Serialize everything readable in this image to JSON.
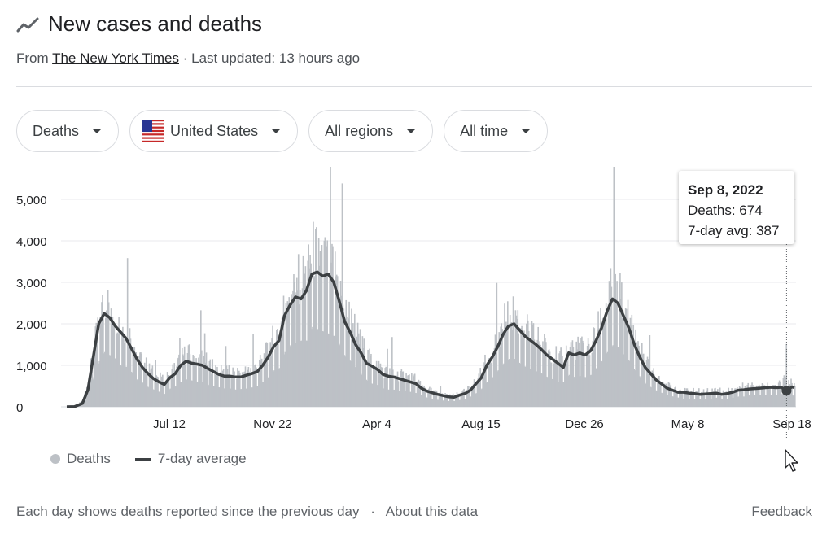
{
  "header": {
    "title": "New cases and deaths",
    "source_prefix": "From",
    "source_name": "The New York Times",
    "updated": "· Last updated: 13 hours ago"
  },
  "filters": [
    {
      "label": "Deaths"
    },
    {
      "label": "United States",
      "flag": "us-flag-icon"
    },
    {
      "label": "All regions"
    },
    {
      "label": "All time"
    }
  ],
  "tooltip": {
    "date": "Sep 8, 2022",
    "deaths_label": "Deaths: 674",
    "avg_label": "7-day avg: 387"
  },
  "legend": {
    "bars": "Deaths",
    "line": "7-day average"
  },
  "footer": {
    "note": "Each day shows deaths reported since the previous day",
    "separator": "·",
    "about": "About this data",
    "feedback": "Feedback"
  },
  "colors": {
    "bars": "#bdc1c6",
    "line": "#3c4043",
    "grid": "#e8eaed",
    "text": "#202124"
  },
  "chart_data": {
    "type": "bar",
    "y_ticks": [
      "5,000",
      "4,000",
      "3,000",
      "2,000",
      "1,000",
      "0"
    ],
    "x_ticks": [
      "Jul 12",
      "Nov 22",
      "Apr 4",
      "Aug 15",
      "Dec 26",
      "May 8",
      "Sep 18"
    ],
    "ylim": [
      0,
      5500
    ],
    "grid": "horizontal",
    "series": [
      {
        "name": "Deaths",
        "kind": "bars"
      },
      {
        "name": "7-day average",
        "kind": "line"
      }
    ],
    "points": [
      [
        "2020-02-29",
        0,
        0
      ],
      [
        "2020-03-10",
        0,
        5
      ],
      [
        "2020-03-20",
        150,
        80
      ],
      [
        "2020-03-27",
        600,
        400
      ],
      [
        "2020-04-03",
        1300,
        1200
      ],
      [
        "2020-04-10",
        2000,
        2000
      ],
      [
        "2020-04-17",
        2400,
        2250
      ],
      [
        "2020-04-24",
        2250,
        2150
      ],
      [
        "2020-05-01",
        2100,
        1950
      ],
      [
        "2020-05-08",
        1800,
        1800
      ],
      [
        "2020-05-15",
        1750,
        1650
      ],
      [
        "2020-05-22",
        1500,
        1400
      ],
      [
        "2020-05-29",
        1150,
        1150
      ],
      [
        "2020-06-05",
        1050,
        950
      ],
      [
        "2020-06-12",
        850,
        800
      ],
      [
        "2020-06-19",
        750,
        680
      ],
      [
        "2020-06-26",
        650,
        600
      ],
      [
        "2020-07-03",
        560,
        540
      ],
      [
        "2020-07-10",
        800,
        700
      ],
      [
        "2020-07-17",
        900,
        800
      ],
      [
        "2020-07-24",
        1100,
        1000
      ],
      [
        "2020-07-31",
        1200,
        1100
      ],
      [
        "2020-08-07",
        1150,
        1050
      ],
      [
        "2020-08-14",
        1100,
        1030
      ],
      [
        "2020-08-21",
        1100,
        1000
      ],
      [
        "2020-08-28",
        950,
        920
      ],
      [
        "2020-09-04",
        900,
        850
      ],
      [
        "2020-09-11",
        850,
        780
      ],
      [
        "2020-09-18",
        800,
        740
      ],
      [
        "2020-09-25",
        800,
        740
      ],
      [
        "2020-10-02",
        750,
        720
      ],
      [
        "2020-10-09",
        780,
        720
      ],
      [
        "2020-10-16",
        800,
        760
      ],
      [
        "2020-10-23",
        850,
        800
      ],
      [
        "2020-10-30",
        900,
        850
      ],
      [
        "2020-11-06",
        1100,
        1000
      ],
      [
        "2020-11-13",
        1300,
        1200
      ],
      [
        "2020-11-20",
        1600,
        1450
      ],
      [
        "2020-11-27",
        1700,
        1600
      ],
      [
        "2020-12-04",
        2400,
        2200
      ],
      [
        "2020-12-11",
        2700,
        2450
      ],
      [
        "2020-12-18",
        2800,
        2650
      ],
      [
        "2020-12-25",
        2900,
        2600
      ],
      [
        "2021-01-01",
        2900,
        2800
      ],
      [
        "2021-01-08",
        3500,
        3200
      ],
      [
        "2021-01-15",
        3400,
        3250
      ],
      [
        "2021-01-22",
        3300,
        3150
      ],
      [
        "2021-01-29",
        3200,
        3200
      ],
      [
        "2021-02-05",
        3100,
        3000
      ],
      [
        "2021-02-12",
        2700,
        2550
      ],
      [
        "2021-02-19",
        2200,
        2050
      ],
      [
        "2021-02-26",
        2000,
        1800
      ],
      [
        "2021-03-05",
        1700,
        1500
      ],
      [
        "2021-03-12",
        1400,
        1300
      ],
      [
        "2021-03-19",
        1150,
        1050
      ],
      [
        "2021-03-26",
        1000,
        980
      ],
      [
        "2021-04-02",
        950,
        900
      ],
      [
        "2021-04-09",
        800,
        780
      ],
      [
        "2021-04-16",
        750,
        740
      ],
      [
        "2021-04-23",
        750,
        720
      ],
      [
        "2021-04-30",
        700,
        680
      ],
      [
        "2021-05-07",
        700,
        640
      ],
      [
        "2021-05-14",
        650,
        600
      ],
      [
        "2021-05-21",
        600,
        560
      ],
      [
        "2021-05-28",
        500,
        450
      ],
      [
        "2021-06-04",
        400,
        380
      ],
      [
        "2021-06-11",
        350,
        340
      ],
      [
        "2021-06-18",
        300,
        300
      ],
      [
        "2021-06-25",
        270,
        270
      ],
      [
        "2021-07-02",
        250,
        240
      ],
      [
        "2021-07-09",
        250,
        230
      ],
      [
        "2021-07-16",
        300,
        280
      ],
      [
        "2021-07-23",
        350,
        320
      ],
      [
        "2021-07-30",
        450,
        400
      ],
      [
        "2021-08-06",
        600,
        550
      ],
      [
        "2021-08-13",
        800,
        700
      ],
      [
        "2021-08-20",
        1100,
        1000
      ],
      [
        "2021-08-27",
        1300,
        1200
      ],
      [
        "2021-09-03",
        1600,
        1450
      ],
      [
        "2021-09-10",
        1900,
        1750
      ],
      [
        "2021-09-17",
        2100,
        1950
      ],
      [
        "2021-09-24",
        2100,
        2000
      ],
      [
        "2021-10-01",
        1900,
        1850
      ],
      [
        "2021-10-08",
        1750,
        1700
      ],
      [
        "2021-10-15",
        1650,
        1600
      ],
      [
        "2021-10-22",
        1550,
        1500
      ],
      [
        "2021-10-29",
        1450,
        1380
      ],
      [
        "2021-11-05",
        1300,
        1250
      ],
      [
        "2021-11-12",
        1200,
        1150
      ],
      [
        "2021-11-19",
        1100,
        1050
      ],
      [
        "2021-11-26",
        1100,
        950
      ],
      [
        "2021-12-03",
        1400,
        1300
      ],
      [
        "2021-12-10",
        1300,
        1250
      ],
      [
        "2021-12-17",
        1350,
        1300
      ],
      [
        "2021-12-24",
        1300,
        1250
      ],
      [
        "2021-12-31",
        1400,
        1350
      ],
      [
        "2022-01-07",
        1700,
        1600
      ],
      [
        "2022-01-14",
        2000,
        1900
      ],
      [
        "2022-01-21",
        2400,
        2300
      ],
      [
        "2022-01-28",
        2700,
        2600
      ],
      [
        "2022-02-04",
        2600,
        2500
      ],
      [
        "2022-02-11",
        2300,
        2200
      ],
      [
        "2022-02-18",
        2000,
        1900
      ],
      [
        "2022-02-25",
        1600,
        1500
      ],
      [
        "2022-03-04",
        1300,
        1200
      ],
      [
        "2022-03-11",
        1000,
        950
      ],
      [
        "2022-03-18",
        850,
        800
      ],
      [
        "2022-03-25",
        700,
        650
      ],
      [
        "2022-04-01",
        600,
        550
      ],
      [
        "2022-04-08",
        500,
        450
      ],
      [
        "2022-04-15",
        450,
        400
      ],
      [
        "2022-04-22",
        400,
        350
      ],
      [
        "2022-04-29",
        350,
        350
      ],
      [
        "2022-05-06",
        350,
        330
      ],
      [
        "2022-05-13",
        350,
        320
      ],
      [
        "2022-05-20",
        350,
        300
      ],
      [
        "2022-05-27",
        350,
        310
      ],
      [
        "2022-06-03",
        350,
        320
      ],
      [
        "2022-06-10",
        400,
        330
      ],
      [
        "2022-06-17",
        350,
        300
      ],
      [
        "2022-06-24",
        350,
        320
      ],
      [
        "2022-07-01",
        400,
        350
      ],
      [
        "2022-07-08",
        450,
        400
      ],
      [
        "2022-07-15",
        450,
        410
      ],
      [
        "2022-07-22",
        500,
        430
      ],
      [
        "2022-07-29",
        500,
        440
      ],
      [
        "2022-08-05",
        500,
        450
      ],
      [
        "2022-08-12",
        500,
        460
      ],
      [
        "2022-08-19",
        500,
        470
      ],
      [
        "2022-08-26",
        500,
        460
      ],
      [
        "2022-09-01",
        550,
        470
      ],
      [
        "2022-09-08",
        674,
        387
      ],
      [
        "2022-09-15",
        500,
        480
      ],
      [
        "2022-09-18",
        450,
        460
      ]
    ],
    "point_fields": [
      "date",
      "deaths",
      "seven_day_avg"
    ],
    "highlight": {
      "date": "2022-09-08",
      "deaths": 674,
      "avg": 387
    }
  }
}
